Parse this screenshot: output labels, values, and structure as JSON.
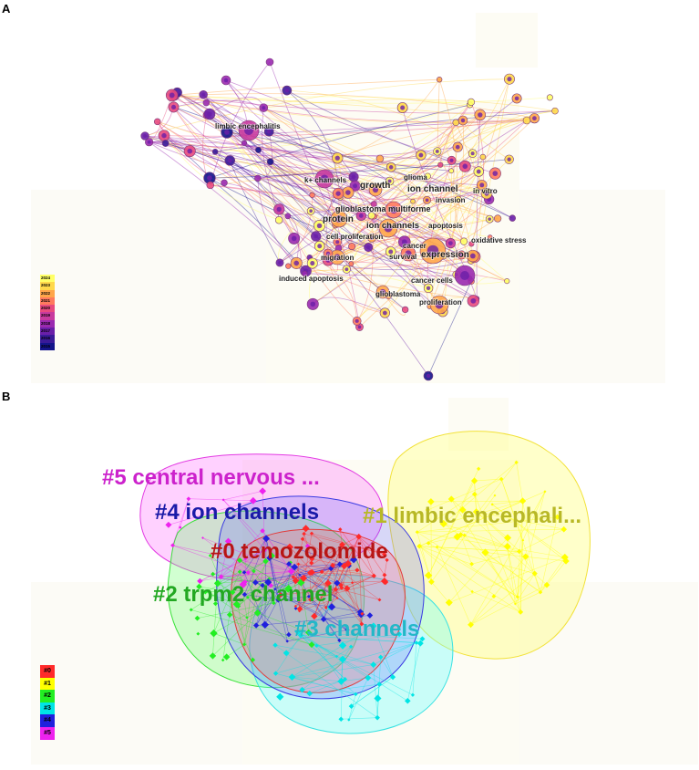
{
  "panels": {
    "a": "A",
    "b": "B"
  },
  "colors": {
    "y2024": "#ffff66",
    "y2023": "#ffd84a",
    "y2022": "#ffa64a",
    "y2021": "#ff7a5e",
    "y2020": "#e84a7f",
    "y2019": "#c83a9e",
    "y2018": "#9a2ab0",
    "y2017": "#6a1fa8",
    "y2016": "#3a1a98",
    "y2015": "#14148a",
    "c0": "#ff2a2a",
    "c1": "#ffff00",
    "c2": "#22ee22",
    "c3": "#00e5e5",
    "c4": "#2020dd",
    "c5": "#ee22ee"
  },
  "keywords": [
    {
      "id": "limbic",
      "label": "limbic encephalitis"
    },
    {
      "id": "kchannels",
      "label": "k+ channels"
    },
    {
      "id": "growth",
      "label": "growth"
    },
    {
      "id": "glioma",
      "label": "glioma"
    },
    {
      "id": "ionchannel",
      "label": "ion channel"
    },
    {
      "id": "invasion",
      "label": "invasion"
    },
    {
      "id": "invitro",
      "label": "in vitro"
    },
    {
      "id": "gbm",
      "label": "glioblastoma multiforme"
    },
    {
      "id": "protein",
      "label": "protein"
    },
    {
      "id": "ionchannels",
      "label": "ion channels"
    },
    {
      "id": "apoptosis",
      "label": "apoptosis"
    },
    {
      "id": "cellprolif",
      "label": "cell proliferation"
    },
    {
      "id": "oxstress",
      "label": "oxidative stress"
    },
    {
      "id": "cancer",
      "label": "cancer"
    },
    {
      "id": "expression",
      "label": "expression"
    },
    {
      "id": "migration",
      "label": "migration"
    },
    {
      "id": "survival",
      "label": "survival"
    },
    {
      "id": "cancercells",
      "label": "cancer cells"
    },
    {
      "id": "inducedapop",
      "label": "induced apoptosis"
    },
    {
      "id": "glioblastoma",
      "label": "glioblastoma"
    },
    {
      "id": "prolif",
      "label": "proliferation"
    }
  ],
  "year_legend": [
    "2024",
    "2023",
    "2022",
    "2021",
    "2020",
    "2019",
    "2018",
    "2017",
    "2016",
    "2015"
  ],
  "clusters": [
    {
      "id": "c5",
      "label": "#5 central nervous ...",
      "color": "#cc22cc"
    },
    {
      "id": "c4",
      "label": "#4 ion channels",
      "color": "#1a1aa8"
    },
    {
      "id": "c1",
      "label": "#1 limbic encephali...",
      "color": "#b8b826"
    },
    {
      "id": "c0",
      "label": "#0 temozolomide",
      "color": "#b81414"
    },
    {
      "id": "c2",
      "label": "#2 trpm2 channel",
      "color": "#22a822"
    },
    {
      "id": "c3",
      "label": "#3 channels",
      "color": "#22b8c8"
    }
  ],
  "cluster_legend": [
    "#0",
    "#1",
    "#2",
    "#3",
    "#4",
    "#5"
  ]
}
